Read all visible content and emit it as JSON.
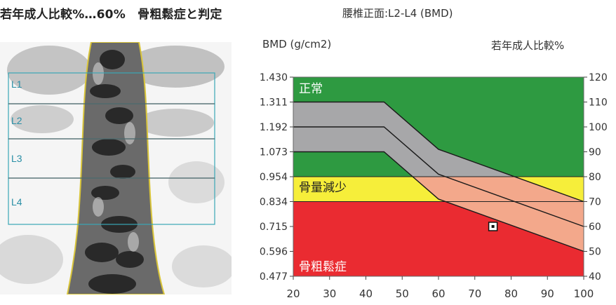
{
  "caption": "若年成人比較%…60%　骨粗鬆症と判定",
  "scan": {
    "roi_labels": [
      "L1",
      "L2",
      "L3",
      "L4"
    ]
  },
  "chart_data": {
    "type": "area",
    "title": "腰椎正面:L2-L4 (BMD)",
    "ylabel_left": "BMD (g/cm2)",
    "ylabel_right": "若年成人比較%",
    "x_ticks": [
      20,
      30,
      40,
      50,
      60,
      70,
      80,
      90,
      100
    ],
    "xlim": [
      20,
      100
    ],
    "y_ticks_left": [
      "1.430",
      "1.311",
      "1.192",
      "1.073",
      "0.954",
      "0.834",
      "0.715",
      "0.596",
      "0.477"
    ],
    "y_ticks_right": [
      "120",
      "110",
      "100",
      "90",
      "80",
      "70",
      "60",
      "50",
      "40"
    ],
    "ylim_pct": [
      40,
      120
    ],
    "zones": [
      {
        "label": "正常",
        "from_pct": 80,
        "to_pct": 120,
        "color": "#2e9a41"
      },
      {
        "label": "骨量減少",
        "from_pct": 70,
        "to_pct": 80,
        "color": "#f6ee3a"
      },
      {
        "label": "骨粗鬆症",
        "from_pct": 40,
        "to_pct": 70,
        "color": "#ea2b31"
      }
    ],
    "reference_curves": {
      "x": [
        20,
        45,
        60,
        100
      ],
      "upper": [
        110,
        110,
        91,
        70
      ],
      "mean": [
        100,
        100,
        81,
        60
      ],
      "lower": [
        90,
        90,
        71,
        50
      ]
    },
    "band_colors": {
      "normal_zone": "#a7a7a9",
      "below_normal": "#f3a88b"
    },
    "patient_point": {
      "age": 75,
      "pct": 60,
      "bmd": 0.715
    }
  }
}
